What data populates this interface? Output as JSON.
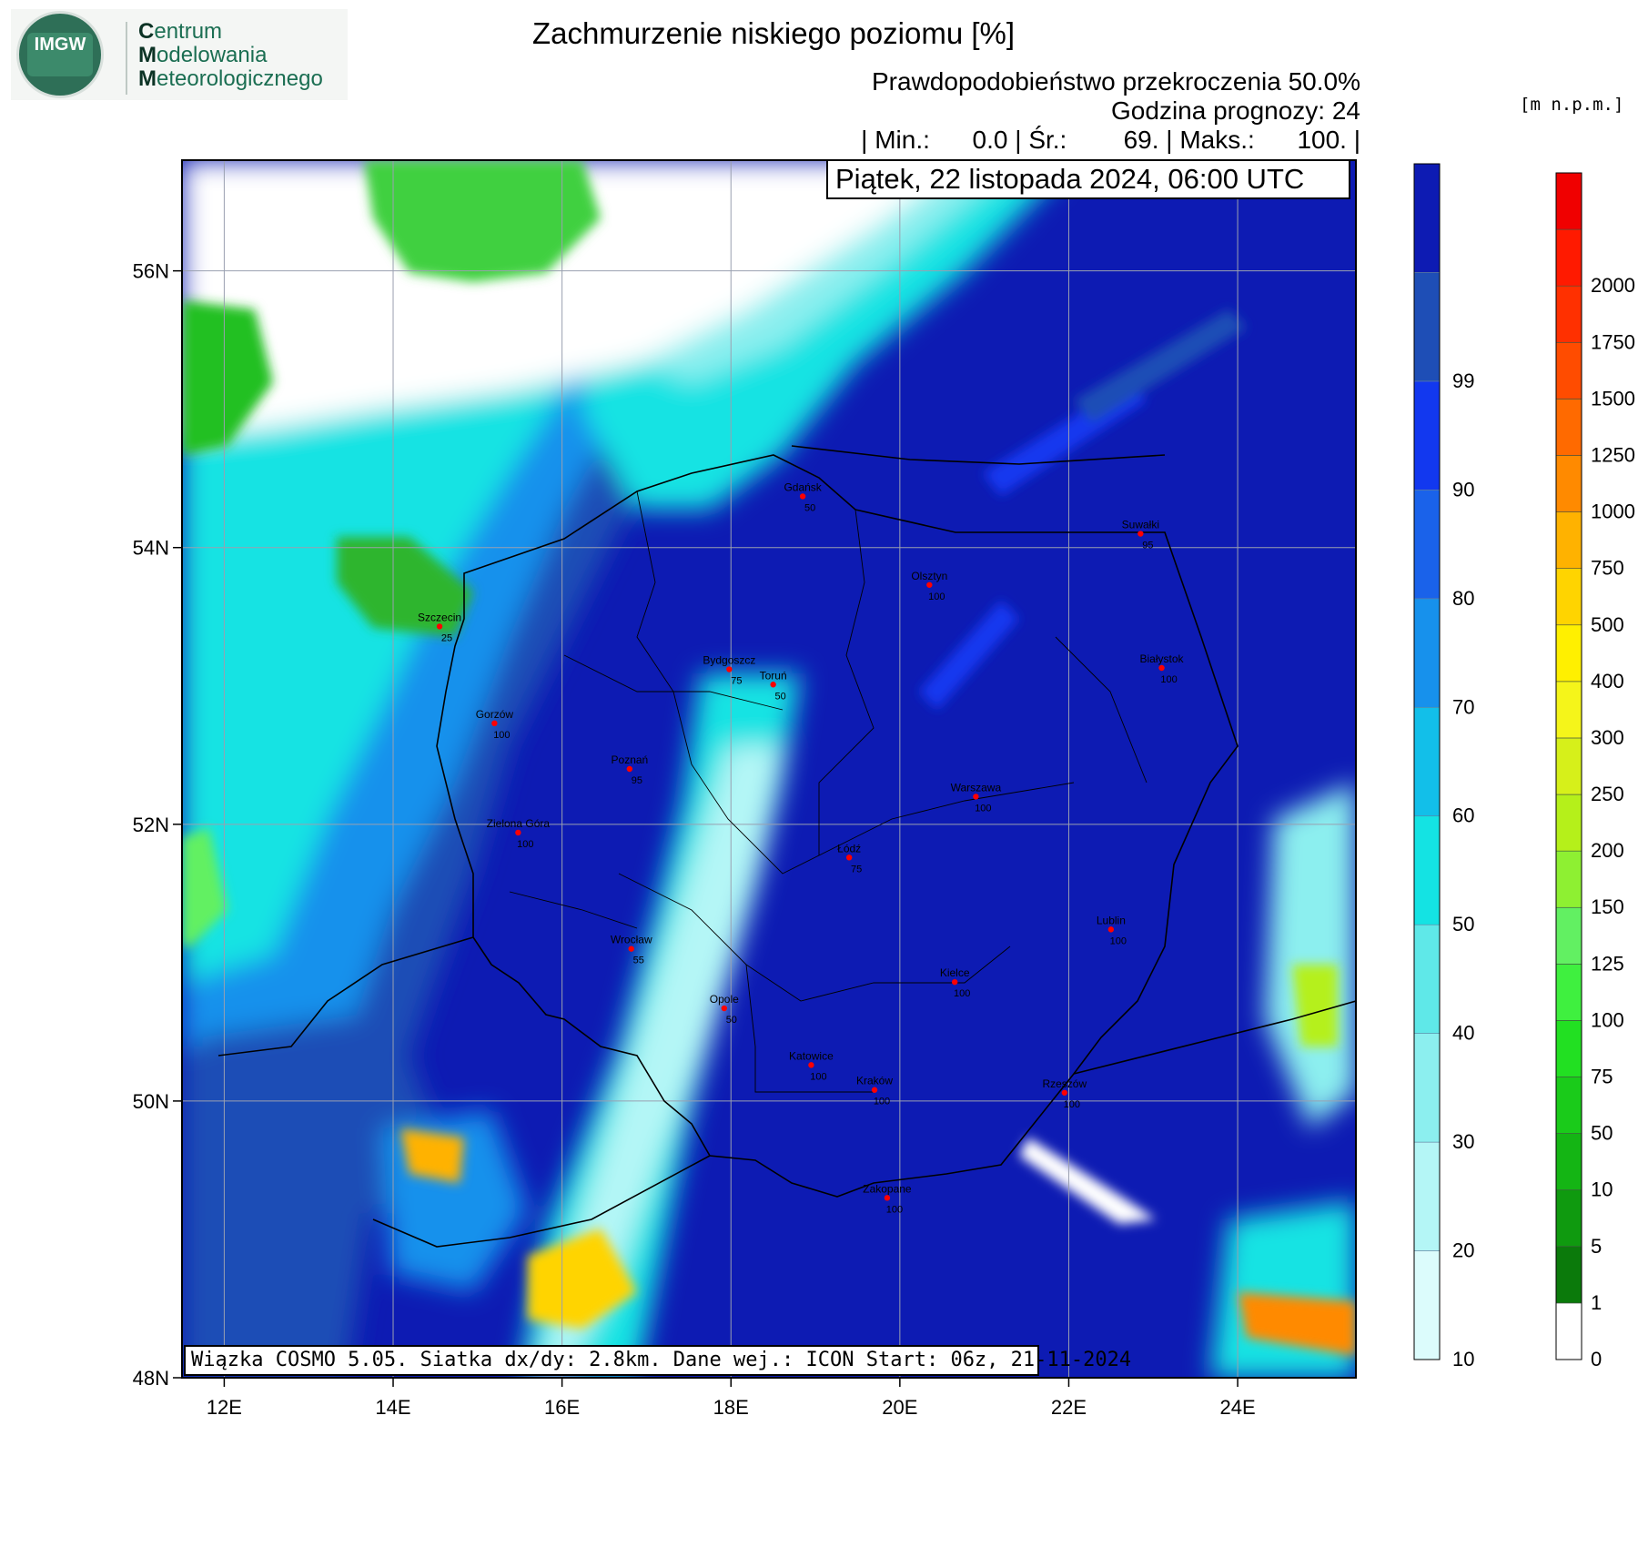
{
  "logo": {
    "mark": "IMGW",
    "line1_initial": "C",
    "line1_rest": "entrum",
    "line2_initial": "M",
    "line2_rest": "odelowania",
    "line3_initial": "M",
    "line3_rest": "eteorologicznego"
  },
  "header": {
    "title": "Zachmurzenie niskiego poziomu [%]",
    "probability": "Prawdopodobieństwo przekroczenia 50.0%",
    "forecast_hour": "Godzina prognozy: 24",
    "stats": "| Min.:      0.0 | Śr.:        69. | Maks.:      100. |",
    "date": "Piątek, 22 listopada 2024, 06:00 UTC"
  },
  "footer": {
    "run_info": "Wiązka COSMO 5.05. Siatka dx/dy: 2.8km. Dane wej.: ICON Start: 06z, 21-11-2024"
  },
  "map": {
    "lon_ticks": [
      "12E",
      "14E",
      "16E",
      "18E",
      "20E",
      "22E",
      "24E"
    ],
    "lat_ticks": [
      "56N",
      "54N",
      "52N",
      "50N",
      "48N"
    ],
    "lon_range": [
      11.5,
      25.4
    ],
    "lat_range": [
      48.0,
      56.8
    ],
    "cities": [
      {
        "name": "Gdańsk",
        "value": "50",
        "lon": 18.85,
        "lat": 54.37
      },
      {
        "name": "Suwałki",
        "value": "95",
        "lon": 22.85,
        "lat": 54.1
      },
      {
        "name": "Olsztyn",
        "value": "100",
        "lon": 20.35,
        "lat": 53.73
      },
      {
        "name": "Szczecin",
        "value": "25",
        "lon": 14.55,
        "lat": 53.43
      },
      {
        "name": "Bydgoszcz",
        "value": "75",
        "lon": 17.98,
        "lat": 53.12
      },
      {
        "name": "Toruń",
        "value": "50",
        "lon": 18.5,
        "lat": 53.01
      },
      {
        "name": "Białystok",
        "value": "100",
        "lon": 23.1,
        "lat": 53.13
      },
      {
        "name": "Gorzów",
        "value": "100",
        "lon": 15.2,
        "lat": 52.73
      },
      {
        "name": "Poznań",
        "value": "95",
        "lon": 16.8,
        "lat": 52.4
      },
      {
        "name": "Warszawa",
        "value": "100",
        "lon": 20.9,
        "lat": 52.2
      },
      {
        "name": "Zielona Góra",
        "value": "100",
        "lon": 15.48,
        "lat": 51.94
      },
      {
        "name": "Łódź",
        "value": "75",
        "lon": 19.4,
        "lat": 51.76
      },
      {
        "name": "Lublin",
        "value": "100",
        "lon": 22.5,
        "lat": 51.24
      },
      {
        "name": "Wrocław",
        "value": "55",
        "lon": 16.82,
        "lat": 51.1
      },
      {
        "name": "Kielce",
        "value": "100",
        "lon": 20.65,
        "lat": 50.86
      },
      {
        "name": "Opole",
        "value": "50",
        "lon": 17.92,
        "lat": 50.67
      },
      {
        "name": "Katowice",
        "value": "100",
        "lon": 18.95,
        "lat": 50.26
      },
      {
        "name": "Kraków",
        "value": "100",
        "lon": 19.7,
        "lat": 50.08
      },
      {
        "name": "Rzeszów",
        "value": "100",
        "lon": 21.95,
        "lat": 50.06
      },
      {
        "name": "Zakopane",
        "value": "100",
        "lon": 19.85,
        "lat": 49.3
      }
    ]
  },
  "cloud_legend": {
    "labels": [
      "10",
      "20",
      "30",
      "40",
      "50",
      "60",
      "70",
      "80",
      "90",
      "99"
    ],
    "colors": [
      "#dcfcfc",
      "#b4f6f6",
      "#8cefef",
      "#5fe8e8",
      "#14e3e3",
      "#12bfe9",
      "#1791ec",
      "#1a62ea",
      "#1238ef",
      "#1e4eb6",
      "#0d1bb3"
    ]
  },
  "terrain_legend": {
    "unit": "[m n.p.m.]",
    "labels": [
      "0",
      "1",
      "5",
      "10",
      "50",
      "75",
      "100",
      "125",
      "150",
      "200",
      "250",
      "300",
      "400",
      "500",
      "750",
      "1000",
      "1250",
      "1500",
      "1750",
      "2000"
    ],
    "colors": [
      "#ffffff",
      "#0b7a0b",
      "#0f9a0f",
      "#14b514",
      "#1acb1a",
      "#22e022",
      "#3ff03f",
      "#62f062",
      "#8ef032",
      "#b5f01a",
      "#d6f01a",
      "#f5f51a",
      "#fff000",
      "#ffd400",
      "#ffb200",
      "#ff8a00",
      "#ff6a00",
      "#ff4c00",
      "#ff3000",
      "#ff1a00",
      "#f00000"
    ]
  },
  "colors": {
    "sea_light": "#ffffff",
    "cloud_dark": "#0d1bb3",
    "land_green": "#2fb52f",
    "city_dot": "#ff0000"
  }
}
